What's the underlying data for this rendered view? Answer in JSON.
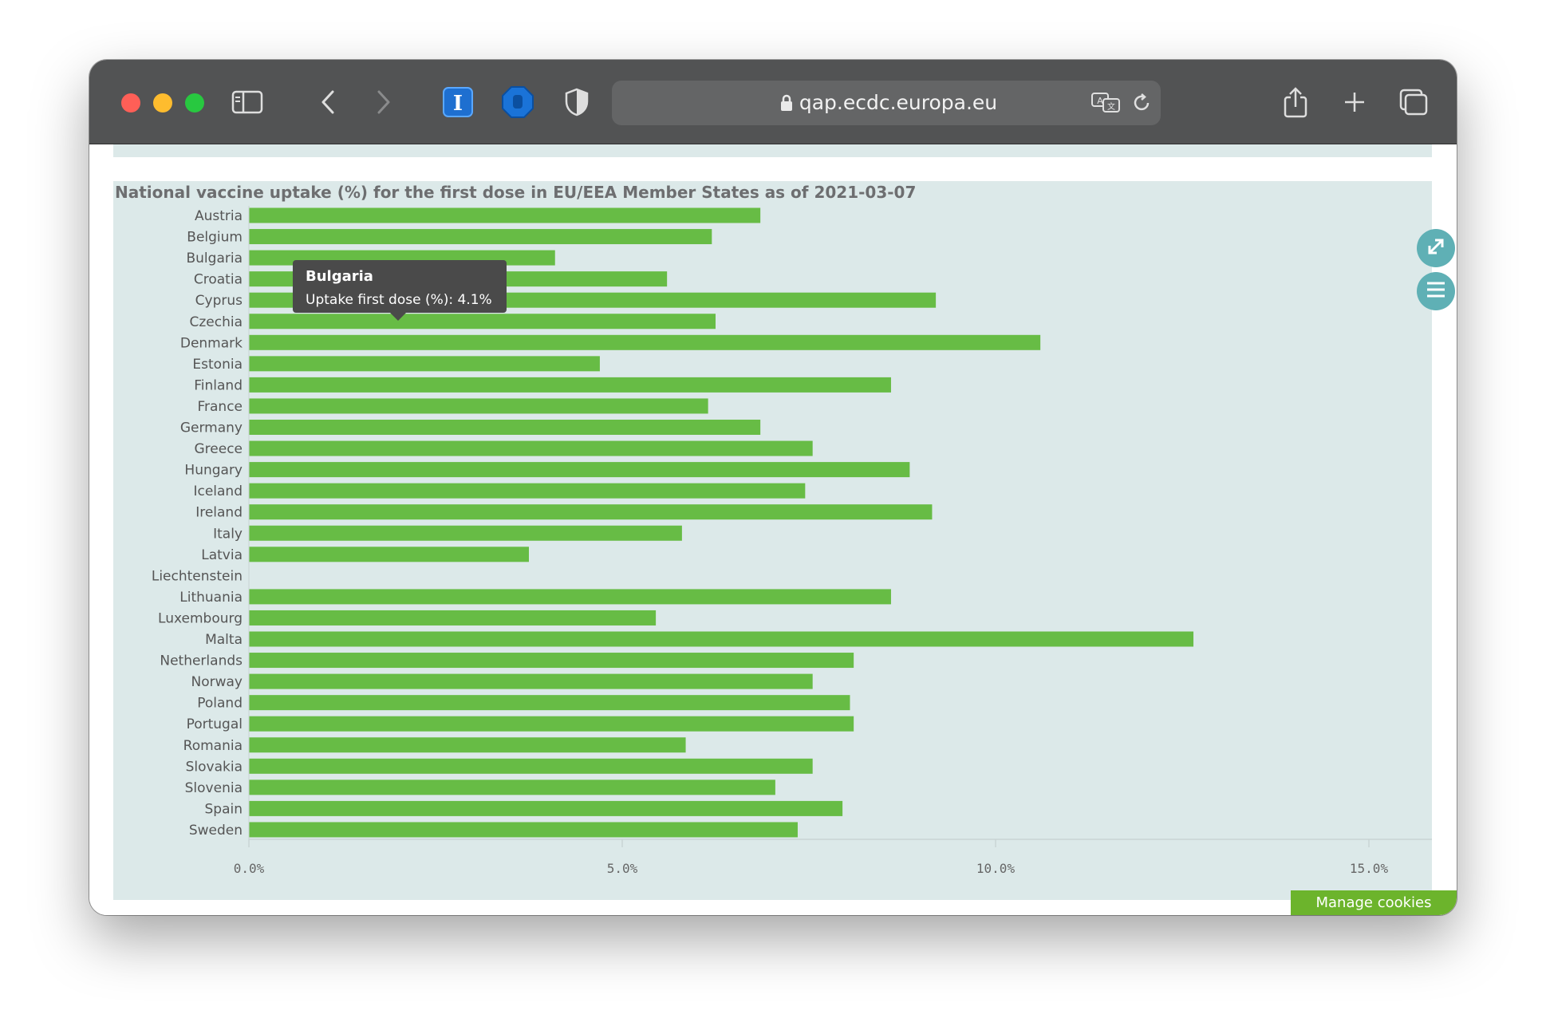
{
  "browser": {
    "url": "qap.ecdc.europa.eu"
  },
  "tooltip": {
    "title": "Bulgaria",
    "label": "Uptake first dose (%):",
    "value": "4.1%"
  },
  "cookies_button": "Manage cookies",
  "colors": {
    "bar": "#67bc45",
    "panel_bg": "#dce9e9",
    "action_button": "#5fb0b5",
    "cookies": "#6cb42c"
  },
  "chart_data": {
    "type": "bar",
    "orientation": "horizontal",
    "title": "National vaccine uptake (%) for the first dose in EU/EEA Member States as of 2021-03-07",
    "series": [
      {
        "name": "Uptake first dose (%)"
      }
    ],
    "categories": [
      "Austria",
      "Belgium",
      "Bulgaria",
      "Croatia",
      "Cyprus",
      "Czechia",
      "Denmark",
      "Estonia",
      "Finland",
      "France",
      "Germany",
      "Greece",
      "Hungary",
      "Iceland",
      "Ireland",
      "Italy",
      "Latvia",
      "Liechtenstein",
      "Lithuania",
      "Luxembourg",
      "Malta",
      "Netherlands",
      "Norway",
      "Poland",
      "Portugal",
      "Romania",
      "Slovakia",
      "Slovenia",
      "Spain",
      "Sweden"
    ],
    "values": [
      6.85,
      6.2,
      4.1,
      5.6,
      9.2,
      6.25,
      10.6,
      4.7,
      8.6,
      6.15,
      6.85,
      7.55,
      8.85,
      7.45,
      9.15,
      5.8,
      3.75,
      0,
      8.6,
      5.45,
      12.65,
      8.1,
      7.55,
      8.05,
      8.1,
      5.85,
      7.55,
      7.05,
      7.95,
      7.35
    ],
    "xlim": [
      0,
      16
    ],
    "x_ticks": [
      "0.0%",
      "5.0%",
      "10.0%",
      "15.0%"
    ],
    "x_tick_values": [
      0,
      5,
      10,
      15
    ],
    "grid": false,
    "legend": "none"
  }
}
